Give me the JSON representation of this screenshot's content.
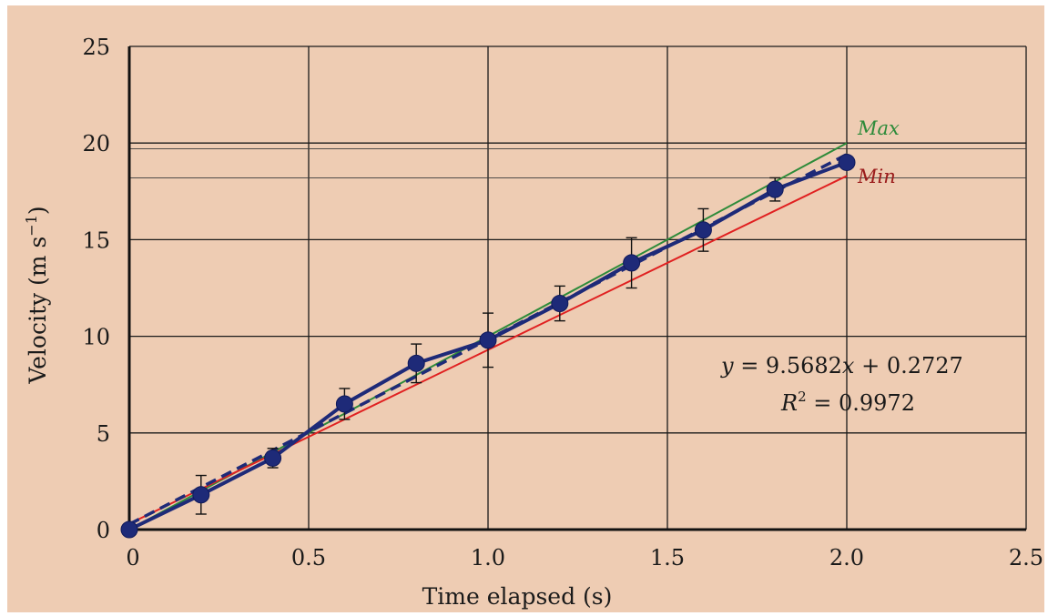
{
  "chart_data": {
    "type": "scatter",
    "xlabel": "Time elapsed (s)",
    "ylabel_main": "Velocity (m s",
    "ylabel_sup": "−1",
    "ylabel_close": ")",
    "xlim": [
      0,
      2.5
    ],
    "ylim": [
      0,
      25
    ],
    "xticks": [
      0,
      0.5,
      1.0,
      1.5,
      2.0,
      2.5
    ],
    "xtick_labels": [
      "0",
      "0.5",
      "1.0",
      "1.5",
      "2.0",
      "2.5"
    ],
    "yticks": [
      0,
      5,
      10,
      15,
      20,
      25
    ],
    "ytick_labels": [
      "0",
      "5",
      "10",
      "15",
      "20",
      "25"
    ],
    "grid": true,
    "data": {
      "x": [
        0,
        0.2,
        0.4,
        0.6,
        0.8,
        1.0,
        1.2,
        1.4,
        1.6,
        1.8,
        2.0
      ],
      "y": [
        0,
        1.8,
        3.7,
        6.5,
        8.6,
        9.8,
        11.7,
        13.8,
        15.5,
        17.6,
        19.0
      ],
      "err": [
        0,
        1.0,
        0.5,
        0.8,
        1.0,
        1.4,
        0.9,
        1.3,
        1.1,
        0.6,
        0
      ]
    },
    "fit": {
      "slope": 9.5682,
      "intercept": 0.2727
    },
    "max_line": {
      "label": "Max",
      "x": [
        0,
        2.0
      ],
      "y": [
        0,
        20.0
      ],
      "color": "#2e8b3a"
    },
    "min_line": {
      "label": "Min",
      "x": [
        0,
        2.0
      ],
      "y": [
        0.3,
        18.3
      ],
      "color": "#e02020"
    },
    "ref_lines_y": [
      19.7,
      18.2
    ],
    "equation_lhs": "y",
    "equation_rhs": " = 9.5682",
    "equation_x": "x",
    "equation_tail": " + 0.2727",
    "r2_label": "R",
    "r2_sup": "2",
    "r2_value": " = 0.9972",
    "colors": {
      "data": "#1e2a78",
      "fit": "#1e2a78",
      "grid": "#1a1a1a",
      "background": "#eeccb3"
    }
  }
}
